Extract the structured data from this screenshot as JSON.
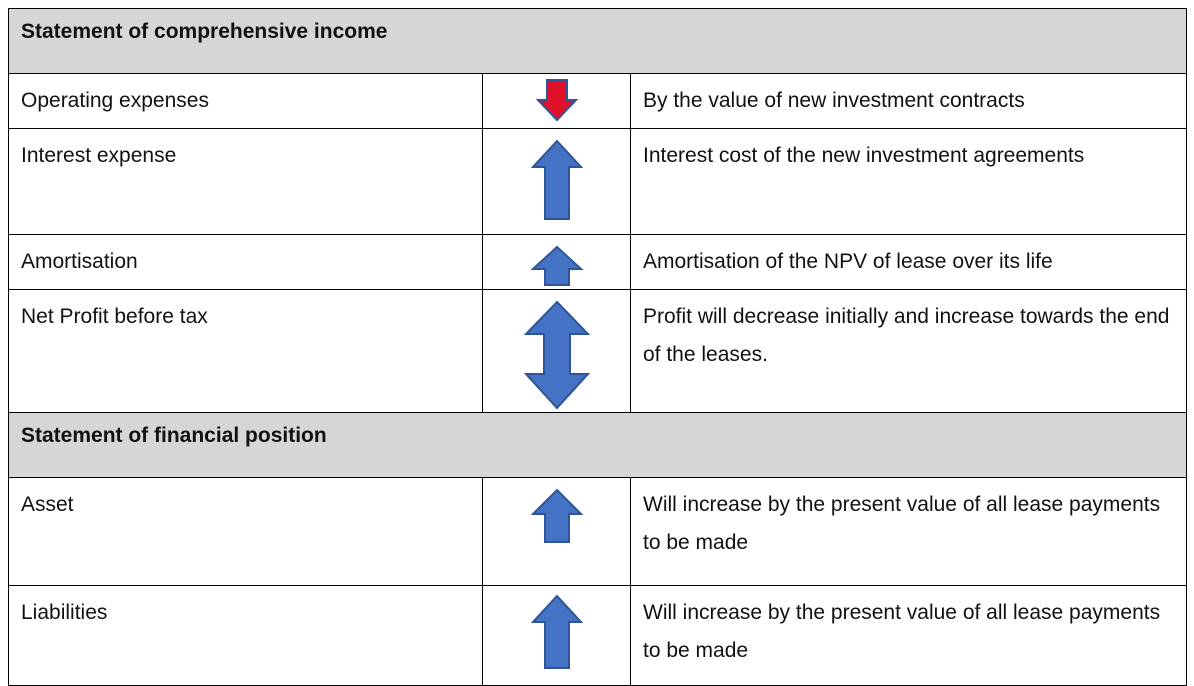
{
  "sections": [
    {
      "title": "Statement of comprehensive income",
      "rows": [
        {
          "item": "Operating expenses",
          "description": "By the value of new investment contracts"
        },
        {
          "item": "Interest expense",
          "description": "Interest cost of the new investment agreements"
        },
        {
          "item": "Amortisation",
          "description": "Amortisation of the NPV of lease over its life"
        },
        {
          "item": "Net Profit before tax",
          "description": "Profit will decrease initially and increase towards the end of the leases."
        }
      ]
    },
    {
      "title": "Statement of financial position",
      "rows": [
        {
          "item": "Asset",
          "description": "Will increase by the present value of all lease payments to be made"
        },
        {
          "item": "Liabilities",
          "description": "Will increase by the present value of all lease payments to be made"
        }
      ]
    }
  ]
}
